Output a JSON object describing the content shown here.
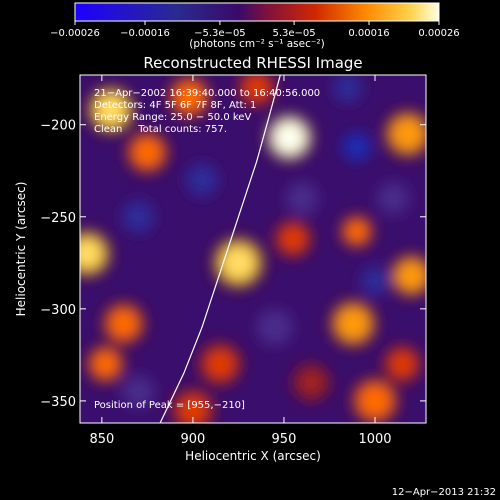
{
  "chart_data": {
    "type": "heatmap",
    "title": "Reconstructed RHESSI Image",
    "xlabel": "Heliocentric X (arcsec)",
    "ylabel": "Heliocentric Y (arcsec)",
    "xlim": [
      838,
      1028
    ],
    "ylim": [
      -362,
      -173
    ],
    "x_ticks": [
      850,
      900,
      950,
      1000
    ],
    "x_tick_labels": [
      "850",
      "900",
      "950",
      "1000"
    ],
    "y_ticks": [
      -200,
      -250,
      -300,
      -350
    ],
    "y_tick_labels": [
      "−200",
      "−250",
      "−300",
      "−350"
    ],
    "colorbar": {
      "range": [
        -0.00026,
        0.00026
      ],
      "tick_values": [
        -0.00026,
        -0.00016,
        -5.3e-05,
        5.3e-05,
        0.00016,
        0.00026
      ],
      "tick_labels": [
        "−0.00026",
        "−0.00016",
        "−5.3e−05",
        "5.3e−05",
        "0.00016",
        "0.00026"
      ],
      "unit_label": "(photons cm⁻² s⁻¹ asec⁻²)"
    },
    "annotations": [
      "21−Apr−2002 16:39:40.000 to 16:40:56.000",
      "Detectors: 4F 5F 6F 7F 8F, Att: 1",
      "Energy Range: 25.0 − 50.0 keV",
      "Clean     Total counts: 757."
    ],
    "peak_label": "Position of Peak = [955,−210]",
    "peak": [
      955,
      -210
    ],
    "limb_curve": [
      [
        882,
        -362
      ],
      [
        895,
        -335
      ],
      [
        905,
        -310
      ],
      [
        915,
        -280
      ],
      [
        925,
        -250
      ],
      [
        935,
        -220
      ],
      [
        942,
        -195
      ],
      [
        948,
        -173
      ]
    ],
    "sources": [
      {
        "x": 953,
        "y": -207,
        "a": 1.0,
        "r": 10
      },
      {
        "x": 925,
        "y": -275,
        "a": 0.85,
        "r": 11
      },
      {
        "x": 842,
        "y": -270,
        "a": 0.85,
        "r": 10
      },
      {
        "x": 1020,
        "y": -282,
        "a": 0.75,
        "r": 9
      },
      {
        "x": 1018,
        "y": -205,
        "a": 0.7,
        "r": 10
      },
      {
        "x": 988,
        "y": -308,
        "a": 0.75,
        "r": 10
      },
      {
        "x": 855,
        "y": -192,
        "a": 0.8,
        "r": 10
      },
      {
        "x": 898,
        "y": -185,
        "a": 0.6,
        "r": 9
      },
      {
        "x": 862,
        "y": -308,
        "a": 0.6,
        "r": 9
      },
      {
        "x": 852,
        "y": -330,
        "a": 0.5,
        "r": 8
      },
      {
        "x": 875,
        "y": -215,
        "a": 0.6,
        "r": 9
      },
      {
        "x": 990,
        "y": -258,
        "a": 0.55,
        "r": 7
      },
      {
        "x": 955,
        "y": -262,
        "a": 0.4,
        "r": 8
      },
      {
        "x": 915,
        "y": -330,
        "a": 0.35,
        "r": 9
      },
      {
        "x": 1000,
        "y": -350,
        "a": 0.55,
        "r": 10
      },
      {
        "x": 965,
        "y": -340,
        "a": 0.3,
        "r": 8
      },
      {
        "x": 935,
        "y": -180,
        "a": 0.45,
        "r": 8
      },
      {
        "x": 900,
        "y": -355,
        "a": 0.4,
        "r": 9
      },
      {
        "x": 1015,
        "y": -330,
        "a": 0.4,
        "r": 8
      },
      {
        "x": 905,
        "y": -230,
        "a": -0.8,
        "r": 9
      },
      {
        "x": 990,
        "y": -212,
        "a": -1.0,
        "r": 8
      },
      {
        "x": 870,
        "y": -250,
        "a": -0.7,
        "r": 9
      },
      {
        "x": 1010,
        "y": -240,
        "a": -0.6,
        "r": 9
      },
      {
        "x": 945,
        "y": -310,
        "a": -0.5,
        "r": 10
      },
      {
        "x": 870,
        "y": -345,
        "a": -0.6,
        "r": 9
      },
      {
        "x": 985,
        "y": -180,
        "a": -0.7,
        "r": 8
      },
      {
        "x": 960,
        "y": -240,
        "a": -0.6,
        "r": 9
      },
      {
        "x": 1000,
        "y": -285,
        "a": -0.7,
        "r": 8
      }
    ]
  },
  "footer": {
    "timestamp": "12−Apr−2013 21:32"
  }
}
